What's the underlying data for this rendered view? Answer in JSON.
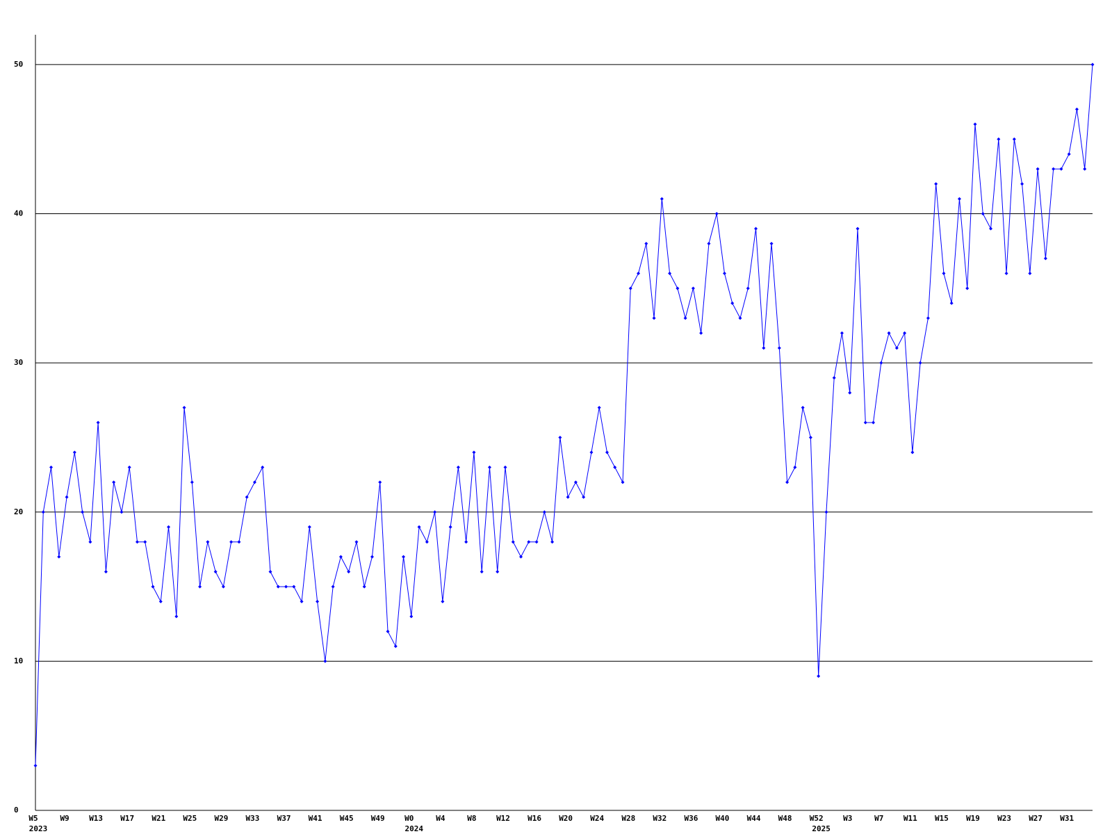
{
  "chart_data": {
    "type": "line",
    "categories": [
      "W5",
      null,
      null,
      null,
      "W9",
      null,
      null,
      null,
      "W13",
      null,
      null,
      null,
      "W17",
      null,
      null,
      null,
      "W21",
      null,
      null,
      null,
      "W25",
      null,
      null,
      null,
      "W29",
      null,
      null,
      null,
      "W33",
      null,
      null,
      null,
      "W37",
      null,
      null,
      null,
      "W41",
      null,
      null,
      null,
      "W45",
      null,
      null,
      null,
      "W49",
      null,
      null,
      null,
      "W0",
      null,
      null,
      null,
      "W4",
      null,
      null,
      null,
      "W8",
      null,
      null,
      null,
      "W12",
      null,
      null,
      null,
      "W16",
      null,
      null,
      null,
      "W20",
      null,
      null,
      null,
      "W24",
      null,
      null,
      null,
      "W28",
      null,
      null,
      null,
      "W32",
      null,
      null,
      null,
      "W36",
      null,
      null,
      null,
      "W40",
      null,
      null,
      null,
      "W44",
      null,
      null,
      null,
      "W48",
      null,
      null,
      null,
      "W52",
      null,
      null,
      null,
      "W3",
      null,
      null,
      null,
      "W7",
      null,
      null,
      null,
      "W11",
      null,
      null,
      null,
      "W15",
      null,
      null,
      null,
      "W19",
      null,
      null,
      null,
      "W23",
      null,
      null,
      null,
      "W27",
      null,
      null,
      null,
      "W31",
      null,
      null,
      null
    ],
    "category_groups": [
      "2023",
      null,
      null,
      null,
      null,
      null,
      null,
      null,
      null,
      null,
      null,
      null,
      null,
      null,
      null,
      null,
      null,
      null,
      null,
      null,
      null,
      null,
      null,
      null,
      null,
      null,
      null,
      null,
      null,
      null,
      null,
      null,
      null,
      null,
      null,
      null,
      null,
      null,
      null,
      null,
      null,
      null,
      null,
      null,
      null,
      null,
      null,
      null,
      "2024",
      null,
      null,
      null,
      null,
      null,
      null,
      null,
      null,
      null,
      null,
      null,
      null,
      null,
      null,
      null,
      null,
      null,
      null,
      null,
      null,
      null,
      null,
      null,
      null,
      null,
      null,
      null,
      null,
      null,
      null,
      null,
      null,
      null,
      null,
      null,
      null,
      null,
      null,
      null,
      null,
      null,
      null,
      null,
      null,
      null,
      null,
      null,
      null,
      null,
      null,
      null,
      "2025",
      null,
      null,
      null,
      null,
      null,
      null,
      null,
      null,
      null,
      null,
      null,
      null,
      null,
      null,
      null,
      null,
      null,
      null,
      null,
      null,
      null,
      null,
      null,
      null,
      null,
      null,
      null,
      null,
      null,
      null,
      null,
      null,
      null,
      null,
      null
    ],
    "series": [
      {
        "color": "#0000ff",
        "values": [
          3,
          20,
          23,
          17,
          21,
          24,
          20,
          18,
          26,
          16,
          22,
          20,
          23,
          18,
          18,
          15,
          14,
          19,
          13,
          27,
          22,
          15,
          18,
          16,
          15,
          18,
          18,
          21,
          22,
          23,
          16,
          15,
          15,
          15,
          14,
          19,
          14,
          10,
          15,
          17,
          16,
          18,
          15,
          17,
          22,
          12,
          11,
          17,
          13,
          19,
          18,
          20,
          14,
          19,
          23,
          18,
          24,
          16,
          23,
          16,
          23,
          18,
          17,
          18,
          18,
          20,
          18,
          25,
          21,
          22,
          21,
          24,
          27,
          24,
          23,
          22,
          35,
          36,
          38,
          33,
          41,
          36,
          35,
          33,
          35,
          32,
          38,
          40,
          36,
          34,
          33,
          35,
          39,
          31,
          38,
          31,
          22,
          23,
          27,
          25,
          9,
          20,
          29,
          32,
          28,
          39,
          26,
          26,
          30,
          32,
          31,
          32,
          24,
          30,
          33,
          42,
          36,
          34,
          41,
          35,
          46,
          40,
          39,
          45,
          36,
          45,
          42,
          36,
          43,
          37,
          43,
          43,
          44,
          47,
          43,
          50
        ]
      }
    ],
    "ylim": [
      0,
      52
    ],
    "yticks": [
      0,
      10,
      20,
      30,
      40,
      50
    ],
    "grid": true
  }
}
